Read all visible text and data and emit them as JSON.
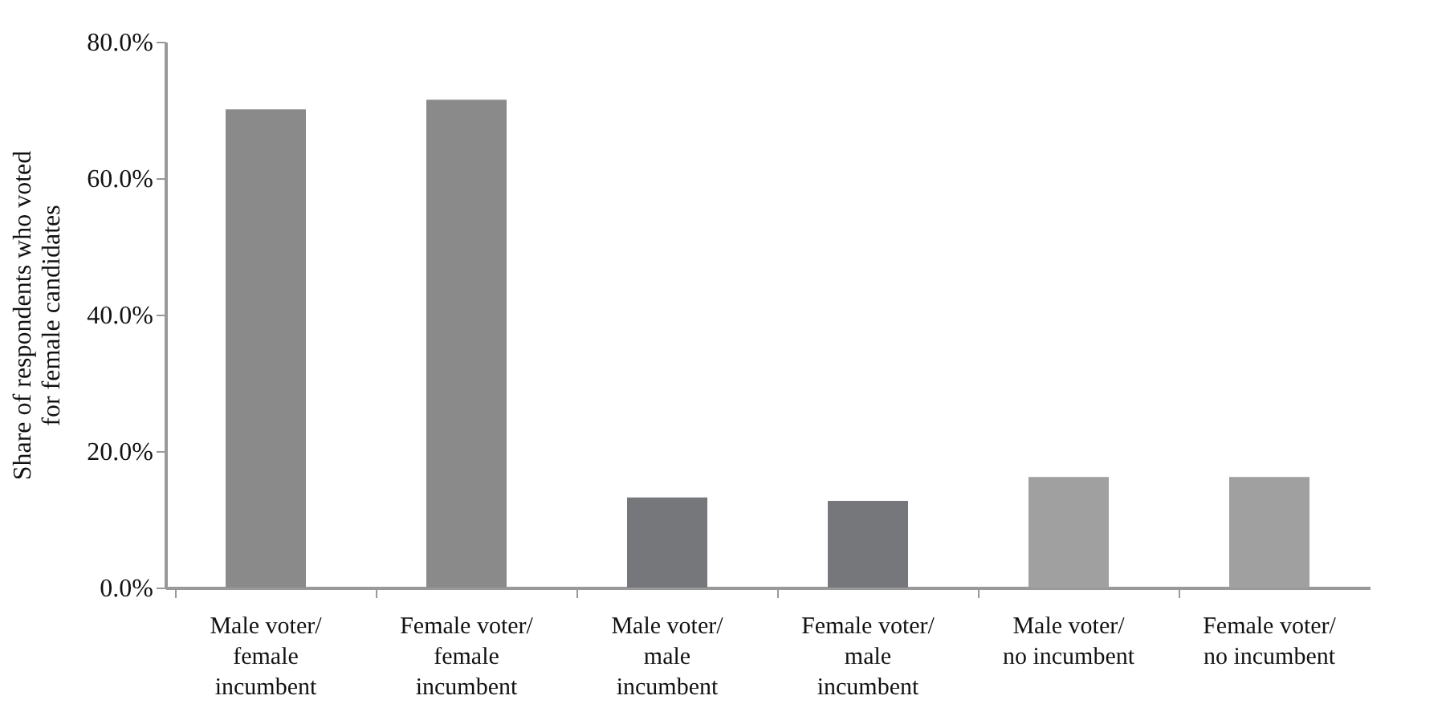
{
  "chart_data": {
    "type": "bar",
    "ylabel": "Share of respondents who voted for female candidates",
    "categories": [
      "Male voter/ female incumbent",
      "Female voter/ female incumbent",
      "Male voter/ male incumbent",
      "Female voter/ male incumbent",
      "Male voter/ no incumbent",
      "Female voter/ no incumbent"
    ],
    "values": [
      70.1,
      71.5,
      13.2,
      12.7,
      16.2,
      16.2
    ],
    "colors": [
      "#8a8a8a",
      "#8a8a8a",
      "#76777a",
      "#76777a",
      "#a0a0a0",
      "#a0a0a0"
    ],
    "ylim": [
      0,
      80
    ],
    "yticks": [
      {
        "value": 0,
        "label": "0.0%"
      },
      {
        "value": 20,
        "label": "20.0%"
      },
      {
        "value": 40,
        "label": "40.0%"
      },
      {
        "value": 60,
        "label": "60.0%"
      },
      {
        "value": 80,
        "label": "80.0%"
      }
    ],
    "grid": false
  }
}
